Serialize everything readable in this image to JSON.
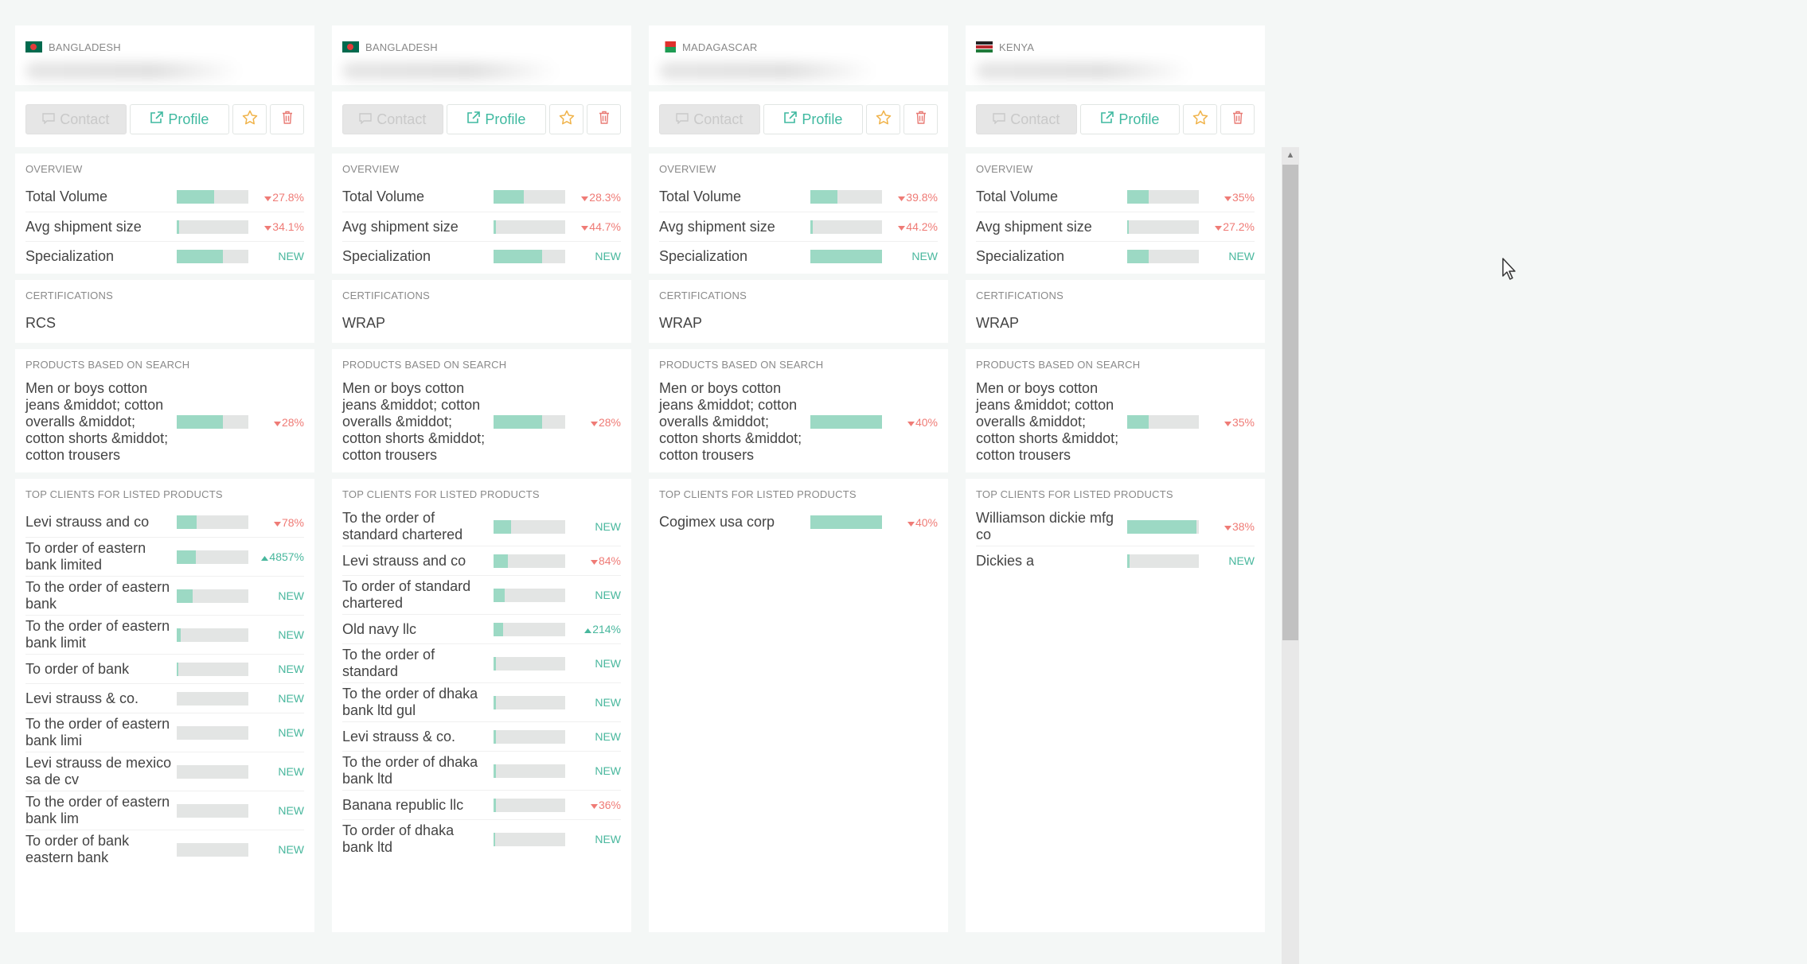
{
  "cards": [
    {
      "country": "BANGLADESH",
      "flag": "bd",
      "contact_label": "Contact",
      "profile_label": "Profile",
      "overview_title": "OVERVIEW",
      "overview": [
        {
          "label": "Total Volume",
          "fill": 0.52,
          "change": "27.8%",
          "dir": "down"
        },
        {
          "label": "Avg shipment size",
          "fill": 0.03,
          "change": "34.1%",
          "dir": "down"
        },
        {
          "label": "Specialization",
          "fill": 0.64,
          "change": "NEW",
          "dir": "new"
        }
      ],
      "cert_title": "CERTIFICATIONS",
      "cert": "RCS",
      "products_title": "PRODUCTS BASED ON SEARCH",
      "products": [
        {
          "label": "Men or boys cotton jeans &middot; cotton overalls &middot; cotton shorts &middot; cotton trousers",
          "fill": 0.64,
          "change": "28%",
          "dir": "down"
        }
      ],
      "clients_title": "TOP CLIENTS FOR LISTED PRODUCTS",
      "clients": [
        {
          "label": "Levi strauss and co",
          "fill": 0.28,
          "change": "78%",
          "dir": "down"
        },
        {
          "label": "To order of eastern bank limited",
          "fill": 0.27,
          "change": "4857%",
          "dir": "up"
        },
        {
          "label": "To the order of eastern bank",
          "fill": 0.22,
          "change": "NEW",
          "dir": "new"
        },
        {
          "label": "To the order of eastern bank limit",
          "fill": 0.05,
          "change": "NEW",
          "dir": "new"
        },
        {
          "label": "To order of bank",
          "fill": 0.02,
          "change": "NEW",
          "dir": "new"
        },
        {
          "label": "Levi strauss & co.",
          "fill": 0.0,
          "change": "NEW",
          "dir": "new"
        },
        {
          "label": "To the order of eastern bank limi",
          "fill": 0.0,
          "change": "NEW",
          "dir": "new"
        },
        {
          "label": "Levi strauss de mexico sa de cv",
          "fill": 0.0,
          "change": "NEW",
          "dir": "new"
        },
        {
          "label": "To the order of eastern bank lim",
          "fill": 0.0,
          "change": "NEW",
          "dir": "new"
        },
        {
          "label": "To order of bank eastern bank",
          "fill": 0.0,
          "change": "NEW",
          "dir": "new"
        }
      ]
    },
    {
      "country": "BANGLADESH",
      "flag": "bd",
      "contact_label": "Contact",
      "profile_label": "Profile",
      "overview_title": "OVERVIEW",
      "overview": [
        {
          "label": "Total Volume",
          "fill": 0.42,
          "change": "28.3%",
          "dir": "down"
        },
        {
          "label": "Avg shipment size",
          "fill": 0.03,
          "change": "44.7%",
          "dir": "down"
        },
        {
          "label": "Specialization",
          "fill": 0.68,
          "change": "NEW",
          "dir": "new"
        }
      ],
      "cert_title": "CERTIFICATIONS",
      "cert": "WRAP",
      "products_title": "PRODUCTS BASED ON SEARCH",
      "products": [
        {
          "label": "Men or boys cotton jeans &middot; cotton overalls &middot; cotton shorts &middot; cotton trousers",
          "fill": 0.68,
          "change": "28%",
          "dir": "down"
        }
      ],
      "clients_title": "TOP CLIENTS FOR LISTED PRODUCTS",
      "clients": [
        {
          "label": "To the order of standard chartered",
          "fill": 0.24,
          "change": "NEW",
          "dir": "new"
        },
        {
          "label": "Levi strauss and co",
          "fill": 0.2,
          "change": "84%",
          "dir": "down"
        },
        {
          "label": "To order of standard chartered",
          "fill": 0.15,
          "change": "NEW",
          "dir": "new"
        },
        {
          "label": "Old navy llc",
          "fill": 0.13,
          "change": "214%",
          "dir": "up"
        },
        {
          "label": "To the order of standard",
          "fill": 0.03,
          "change": "NEW",
          "dir": "new"
        },
        {
          "label": "To the order of dhaka bank ltd gul",
          "fill": 0.03,
          "change": "NEW",
          "dir": "new"
        },
        {
          "label": "Levi strauss & co.",
          "fill": 0.03,
          "change": "NEW",
          "dir": "new"
        },
        {
          "label": "To the order of dhaka bank ltd",
          "fill": 0.03,
          "change": "NEW",
          "dir": "new"
        },
        {
          "label": "Banana republic llc",
          "fill": 0.03,
          "change": "36%",
          "dir": "down"
        },
        {
          "label": "To order of dhaka bank ltd",
          "fill": 0.02,
          "change": "NEW",
          "dir": "new"
        }
      ]
    },
    {
      "country": "MADAGASCAR",
      "flag": "mg",
      "contact_label": "Contact",
      "profile_label": "Profile",
      "overview_title": "OVERVIEW",
      "overview": [
        {
          "label": "Total Volume",
          "fill": 0.38,
          "change": "39.8%",
          "dir": "down"
        },
        {
          "label": "Avg shipment size",
          "fill": 0.03,
          "change": "44.2%",
          "dir": "down"
        },
        {
          "label": "Specialization",
          "fill": 1.0,
          "change": "NEW",
          "dir": "new"
        }
      ],
      "cert_title": "CERTIFICATIONS",
      "cert": "WRAP",
      "products_title": "PRODUCTS BASED ON SEARCH",
      "products": [
        {
          "label": "Men or boys cotton jeans &middot; cotton overalls &middot; cotton shorts &middot; cotton trousers",
          "fill": 1.0,
          "change": "40%",
          "dir": "down"
        }
      ],
      "clients_title": "TOP CLIENTS FOR LISTED PRODUCTS",
      "clients": [
        {
          "label": "Cogimex usa corp",
          "fill": 1.0,
          "change": "40%",
          "dir": "down"
        }
      ]
    },
    {
      "country": "KENYA",
      "flag": "ke",
      "contact_label": "Contact",
      "profile_label": "Profile",
      "overview_title": "OVERVIEW",
      "overview": [
        {
          "label": "Total Volume",
          "fill": 0.3,
          "change": "35%",
          "dir": "down"
        },
        {
          "label": "Avg shipment size",
          "fill": 0.02,
          "change": "27.2%",
          "dir": "down"
        },
        {
          "label": "Specialization",
          "fill": 0.3,
          "change": "NEW",
          "dir": "new"
        }
      ],
      "cert_title": "CERTIFICATIONS",
      "cert": "WRAP",
      "products_title": "PRODUCTS BASED ON SEARCH",
      "products": [
        {
          "label": "Men or boys cotton jeans &middot; cotton overalls &middot; cotton shorts &middot; cotton trousers",
          "fill": 0.3,
          "change": "35%",
          "dir": "down"
        }
      ],
      "clients_title": "TOP CLIENTS FOR LISTED PRODUCTS",
      "clients": [
        {
          "label": "Williamson dickie mfg co",
          "fill": 0.97,
          "change": "38%",
          "dir": "down"
        },
        {
          "label": "Dickies a",
          "fill": 0.03,
          "change": "NEW",
          "dir": "new"
        }
      ]
    }
  ],
  "icons": {
    "contact": "chat-bubble-icon",
    "profile": "external-link-icon",
    "star": "star-icon",
    "trash": "trash-icon"
  },
  "colors": {
    "accent": "#3fb9a0",
    "bar_fill": "#9cd9c4",
    "down": "#ef7b76",
    "up": "#48b79d"
  },
  "scrollbar": {
    "position": 0.0
  }
}
